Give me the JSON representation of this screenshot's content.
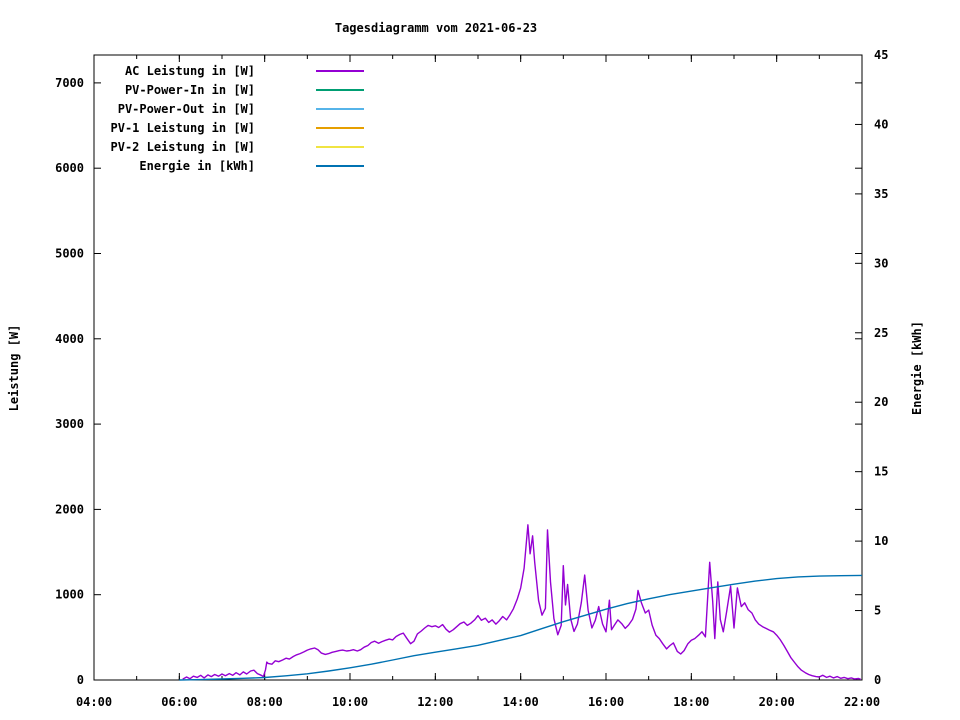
{
  "chart_data": {
    "type": "line",
    "title": "Tagesdiagramm vom 2021-06-23",
    "ylabel_left": "Leistung [W]",
    "ylabel_right": "Energie [kWh]",
    "grid": false,
    "legend_position": "top-left-inside",
    "x_range_hours": [
      4,
      22
    ],
    "x_minor_step_hours": 1,
    "x_ticks": [
      {
        "h": 4,
        "label": "04:00"
      },
      {
        "h": 6,
        "label": "06:00"
      },
      {
        "h": 8,
        "label": "08:00"
      },
      {
        "h": 10,
        "label": "10:00"
      },
      {
        "h": 12,
        "label": "12:00"
      },
      {
        "h": 14,
        "label": "14:00"
      },
      {
        "h": 16,
        "label": "16:00"
      },
      {
        "h": 18,
        "label": "18:00"
      },
      {
        "h": 20,
        "label": "20:00"
      },
      {
        "h": 22,
        "label": "22:00"
      }
    ],
    "y1_axis": {
      "label": "Leistung [W]",
      "range_at_border": [
        0,
        7327
      ],
      "ticks": [
        0,
        1000,
        2000,
        3000,
        4000,
        5000,
        6000,
        7000
      ]
    },
    "y2_axis": {
      "label": "Energie [kWh]",
      "range_at_border": [
        0,
        45
      ],
      "ticks": [
        0,
        5,
        10,
        15,
        20,
        25,
        30,
        35,
        40,
        45
      ]
    },
    "series": [
      {
        "name": "AC Leistung in [W]",
        "color": "#9400d3",
        "axis": "y1",
        "points": [
          [
            6.08,
            10
          ],
          [
            6.17,
            35
          ],
          [
            6.25,
            15
          ],
          [
            6.33,
            45
          ],
          [
            6.42,
            30
          ],
          [
            6.5,
            55
          ],
          [
            6.58,
            25
          ],
          [
            6.67,
            60
          ],
          [
            6.75,
            40
          ],
          [
            6.83,
            65
          ],
          [
            6.92,
            45
          ],
          [
            7,
            70
          ],
          [
            7.08,
            50
          ],
          [
            7.17,
            75
          ],
          [
            7.25,
            55
          ],
          [
            7.33,
            85
          ],
          [
            7.42,
            60
          ],
          [
            7.5,
            95
          ],
          [
            7.58,
            70
          ],
          [
            7.67,
            105
          ],
          [
            7.75,
            115
          ],
          [
            7.83,
            75
          ],
          [
            7.92,
            55
          ],
          [
            7.97,
            40
          ],
          [
            8.02,
            120
          ],
          [
            8.05,
            210
          ],
          [
            8.08,
            195
          ],
          [
            8.17,
            185
          ],
          [
            8.25,
            225
          ],
          [
            8.33,
            215
          ],
          [
            8.42,
            235
          ],
          [
            8.5,
            255
          ],
          [
            8.58,
            245
          ],
          [
            8.67,
            275
          ],
          [
            8.75,
            295
          ],
          [
            8.83,
            310
          ],
          [
            8.92,
            330
          ],
          [
            9,
            350
          ],
          [
            9.08,
            365
          ],
          [
            9.17,
            375
          ],
          [
            9.25,
            355
          ],
          [
            9.33,
            315
          ],
          [
            9.42,
            300
          ],
          [
            9.5,
            310
          ],
          [
            9.58,
            325
          ],
          [
            9.67,
            335
          ],
          [
            9.75,
            345
          ],
          [
            9.83,
            350
          ],
          [
            9.92,
            340
          ],
          [
            10,
            345
          ],
          [
            10.08,
            355
          ],
          [
            10.17,
            340
          ],
          [
            10.25,
            355
          ],
          [
            10.33,
            385
          ],
          [
            10.42,
            405
          ],
          [
            10.5,
            440
          ],
          [
            10.58,
            455
          ],
          [
            10.67,
            430
          ],
          [
            10.75,
            450
          ],
          [
            10.83,
            465
          ],
          [
            10.92,
            480
          ],
          [
            11,
            470
          ],
          [
            11.08,
            510
          ],
          [
            11.17,
            535
          ],
          [
            11.25,
            550
          ],
          [
            11.33,
            490
          ],
          [
            11.42,
            425
          ],
          [
            11.5,
            455
          ],
          [
            11.58,
            540
          ],
          [
            11.67,
            575
          ],
          [
            11.75,
            610
          ],
          [
            11.83,
            640
          ],
          [
            11.92,
            625
          ],
          [
            12,
            635
          ],
          [
            12.08,
            615
          ],
          [
            12.17,
            650
          ],
          [
            12.25,
            595
          ],
          [
            12.33,
            560
          ],
          [
            12.42,
            590
          ],
          [
            12.5,
            625
          ],
          [
            12.58,
            660
          ],
          [
            12.67,
            680
          ],
          [
            12.75,
            640
          ],
          [
            12.83,
            665
          ],
          [
            12.92,
            705
          ],
          [
            13,
            755
          ],
          [
            13.08,
            700
          ],
          [
            13.17,
            725
          ],
          [
            13.25,
            675
          ],
          [
            13.33,
            705
          ],
          [
            13.42,
            655
          ],
          [
            13.5,
            695
          ],
          [
            13.58,
            745
          ],
          [
            13.67,
            705
          ],
          [
            13.75,
            765
          ],
          [
            13.83,
            835
          ],
          [
            13.92,
            950
          ],
          [
            14,
            1080
          ],
          [
            14.08,
            1310
          ],
          [
            14.17,
            1820
          ],
          [
            14.22,
            1480
          ],
          [
            14.28,
            1690
          ],
          [
            14.33,
            1380
          ],
          [
            14.42,
            930
          ],
          [
            14.5,
            760
          ],
          [
            14.58,
            840
          ],
          [
            14.63,
            1760
          ],
          [
            14.7,
            1150
          ],
          [
            14.78,
            720
          ],
          [
            14.87,
            530
          ],
          [
            14.95,
            640
          ],
          [
            15,
            1340
          ],
          [
            15.05,
            880
          ],
          [
            15.1,
            1120
          ],
          [
            15.17,
            720
          ],
          [
            15.25,
            570
          ],
          [
            15.33,
            655
          ],
          [
            15.42,
            905
          ],
          [
            15.5,
            1230
          ],
          [
            15.58,
            820
          ],
          [
            15.67,
            610
          ],
          [
            15.75,
            700
          ],
          [
            15.83,
            860
          ],
          [
            15.92,
            655
          ],
          [
            16,
            565
          ],
          [
            16.08,
            935
          ],
          [
            16.13,
            590
          ],
          [
            16.2,
            645
          ],
          [
            16.28,
            705
          ],
          [
            16.37,
            660
          ],
          [
            16.45,
            605
          ],
          [
            16.53,
            645
          ],
          [
            16.62,
            710
          ],
          [
            16.7,
            830
          ],
          [
            16.75,
            1050
          ],
          [
            16.83,
            905
          ],
          [
            16.92,
            785
          ],
          [
            17,
            820
          ],
          [
            17.08,
            645
          ],
          [
            17.17,
            525
          ],
          [
            17.25,
            485
          ],
          [
            17.33,
            425
          ],
          [
            17.42,
            365
          ],
          [
            17.5,
            405
          ],
          [
            17.58,
            435
          ],
          [
            17.67,
            335
          ],
          [
            17.75,
            305
          ],
          [
            17.83,
            345
          ],
          [
            17.92,
            425
          ],
          [
            18,
            465
          ],
          [
            18.08,
            485
          ],
          [
            18.17,
            525
          ],
          [
            18.25,
            565
          ],
          [
            18.33,
            505
          ],
          [
            18.43,
            1380
          ],
          [
            18.5,
            920
          ],
          [
            18.55,
            485
          ],
          [
            18.62,
            1150
          ],
          [
            18.68,
            710
          ],
          [
            18.75,
            565
          ],
          [
            18.83,
            805
          ],
          [
            18.92,
            1100
          ],
          [
            19,
            610
          ],
          [
            19.08,
            1080
          ],
          [
            19.17,
            860
          ],
          [
            19.25,
            905
          ],
          [
            19.33,
            825
          ],
          [
            19.42,
            785
          ],
          [
            19.5,
            705
          ],
          [
            19.58,
            655
          ],
          [
            19.67,
            625
          ],
          [
            19.75,
            605
          ],
          [
            19.83,
            585
          ],
          [
            19.92,
            565
          ],
          [
            20,
            525
          ],
          [
            20.08,
            475
          ],
          [
            20.17,
            405
          ],
          [
            20.25,
            335
          ],
          [
            20.33,
            265
          ],
          [
            20.42,
            205
          ],
          [
            20.5,
            155
          ],
          [
            20.58,
            115
          ],
          [
            20.67,
            85
          ],
          [
            20.75,
            65
          ],
          [
            20.83,
            50
          ],
          [
            20.92,
            40
          ],
          [
            21,
            35
          ],
          [
            21.08,
            55
          ],
          [
            21.17,
            30
          ],
          [
            21.25,
            45
          ],
          [
            21.33,
            25
          ],
          [
            21.42,
            40
          ],
          [
            21.5,
            20
          ],
          [
            21.58,
            30
          ],
          [
            21.67,
            15
          ],
          [
            21.75,
            25
          ],
          [
            21.83,
            12
          ],
          [
            21.92,
            18
          ],
          [
            21.97,
            8
          ]
        ]
      },
      {
        "name": "PV-Power-In in [W]",
        "color": "#009e73",
        "axis": "y1",
        "points": []
      },
      {
        "name": "PV-Power-Out in [W]",
        "color": "#56b4e9",
        "axis": "y1",
        "points": []
      },
      {
        "name": "PV-1 Leistung in [W]",
        "color": "#e69f00",
        "axis": "y1",
        "points": []
      },
      {
        "name": "PV-2 Leistung in [W]",
        "color": "#f0e442",
        "axis": "y1",
        "points": []
      },
      {
        "name": "Energie in [kWh]",
        "color": "#0072b2",
        "axis": "y2",
        "points": [
          [
            6,
            0
          ],
          [
            6.5,
            0.03
          ],
          [
            7,
            0.07
          ],
          [
            7.5,
            0.12
          ],
          [
            8,
            0.18
          ],
          [
            8.5,
            0.3
          ],
          [
            9,
            0.45
          ],
          [
            9.5,
            0.65
          ],
          [
            10,
            0.88
          ],
          [
            10.5,
            1.14
          ],
          [
            11,
            1.44
          ],
          [
            11.5,
            1.75
          ],
          [
            12,
            2.0
          ],
          [
            12.5,
            2.25
          ],
          [
            13,
            2.5
          ],
          [
            13.5,
            2.85
          ],
          [
            14,
            3.2
          ],
          [
            14.5,
            3.7
          ],
          [
            15,
            4.2
          ],
          [
            15.5,
            4.65
          ],
          [
            16,
            5.1
          ],
          [
            16.5,
            5.5
          ],
          [
            17,
            5.85
          ],
          [
            17.5,
            6.15
          ],
          [
            18,
            6.4
          ],
          [
            18.5,
            6.65
          ],
          [
            19,
            6.9
          ],
          [
            19.5,
            7.12
          ],
          [
            20,
            7.3
          ],
          [
            20.5,
            7.42
          ],
          [
            21,
            7.48
          ],
          [
            21.5,
            7.51
          ],
          [
            22,
            7.53
          ]
        ]
      }
    ]
  }
}
